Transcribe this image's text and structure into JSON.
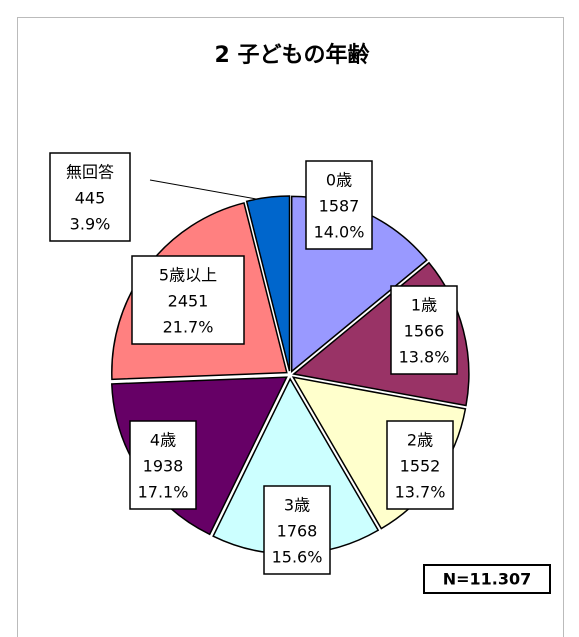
{
  "chart_data": {
    "type": "pie",
    "title": "2 子どもの年齢",
    "categories": [
      "0歳",
      "1歳",
      "2歳",
      "3歳",
      "4歳",
      "5歳以上",
      "無回答"
    ],
    "values": [
      1587,
      1566,
      1552,
      1768,
      1938,
      2451,
      445
    ],
    "percent_labels": [
      "14.0%",
      "13.8%",
      "13.7%",
      "15.6%",
      "17.1%",
      "21.7%",
      "3.9%"
    ],
    "colors": [
      "#9999ff",
      "#993366",
      "#ffffcc",
      "#ccffff",
      "#660066",
      "#ff8080",
      "#0066cc"
    ],
    "note": "N=11.307"
  }
}
